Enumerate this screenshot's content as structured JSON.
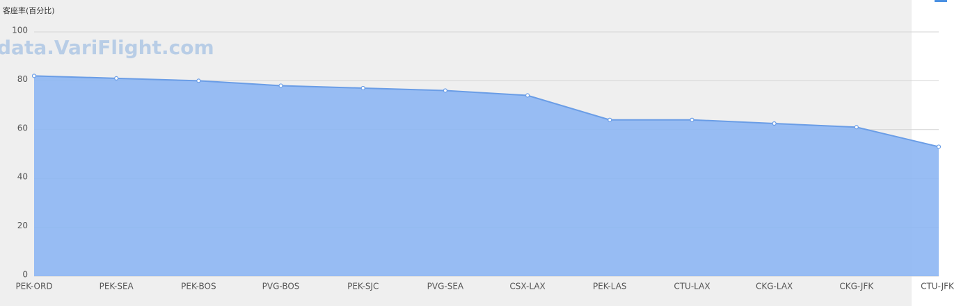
{
  "chart_data": {
    "type": "area",
    "y_axis_label": "客座率(百分比)",
    "watermark": "data.VariFlight.com",
    "categories": [
      "PEK-ORD",
      "PEK-SEA",
      "PEK-BOS",
      "PVG-BOS",
      "PEK-SJC",
      "PVG-SEA",
      "CSX-LAX",
      "PEK-LAS",
      "CTU-LAX",
      "CKG-LAX",
      "CKG-JFK",
      "CTU-JFK"
    ],
    "values": [
      82,
      81,
      80,
      78,
      77,
      76,
      74,
      64,
      64,
      62.5,
      61,
      53
    ],
    "color": "#6a9de6",
    "fill": "#8db6f3",
    "ylim": [
      0,
      100
    ],
    "yticks": [
      0,
      20,
      40,
      60,
      80,
      100
    ],
    "grid": true
  }
}
